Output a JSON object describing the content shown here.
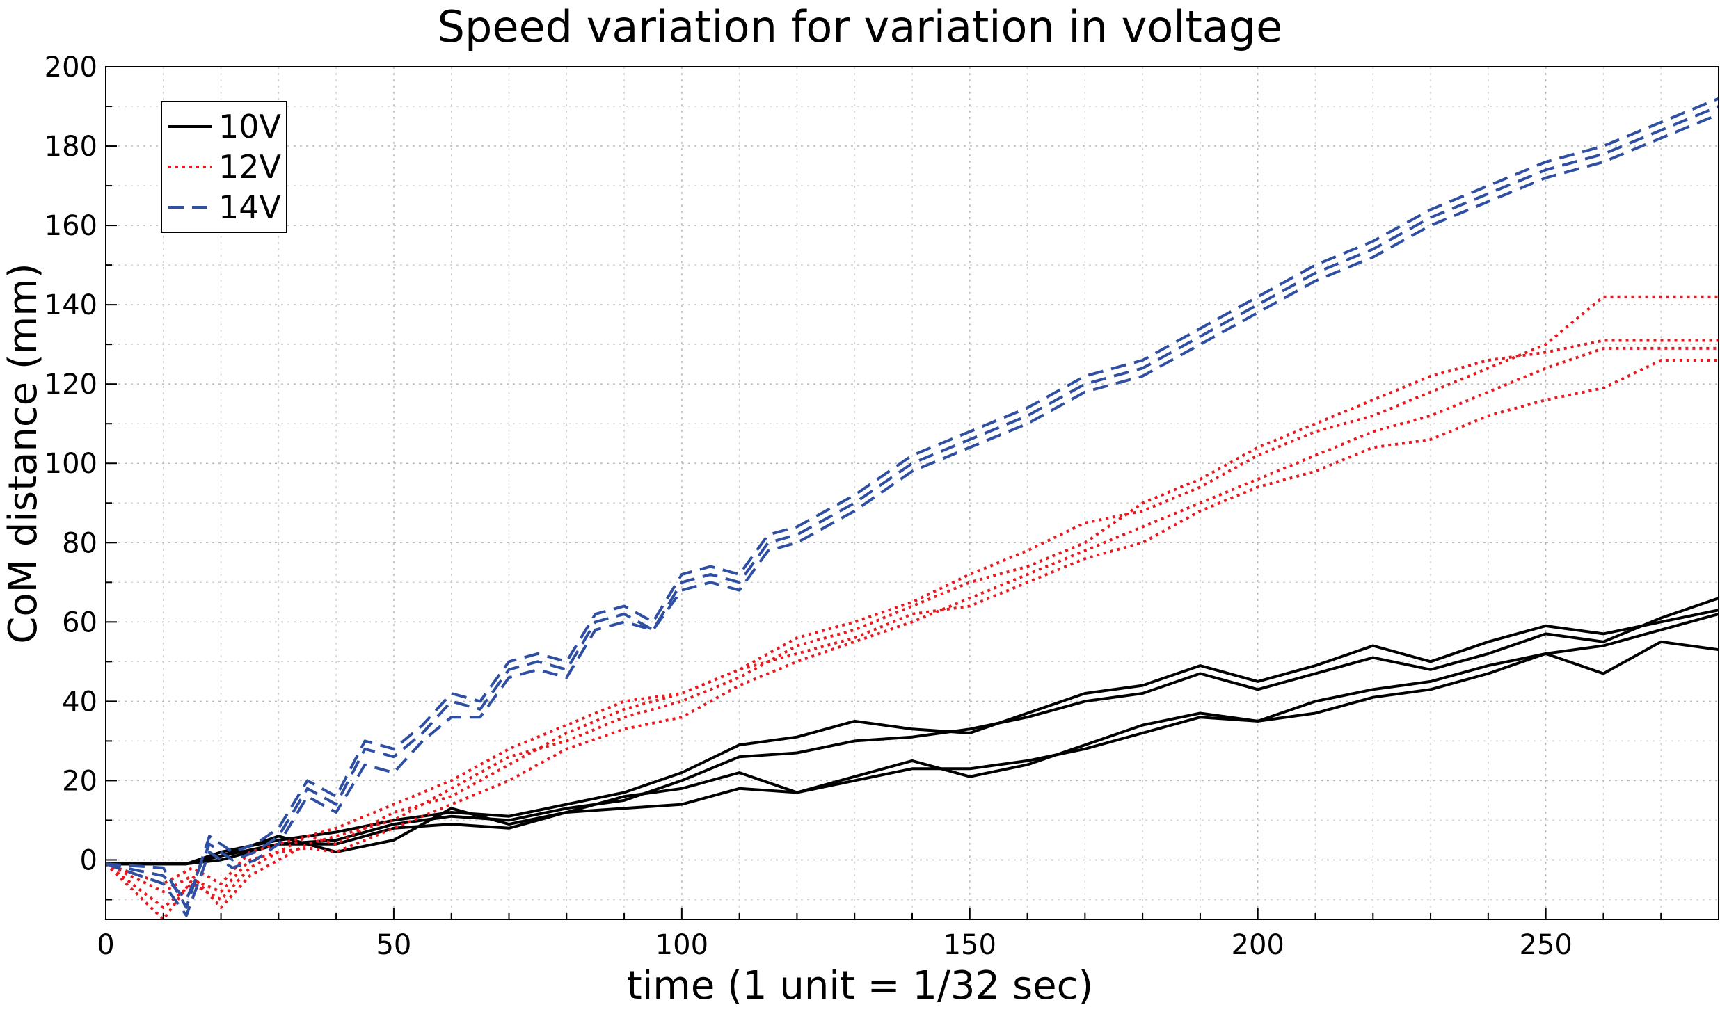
{
  "chart_data": {
    "type": "line",
    "title": "Speed variation for variation in voltage",
    "xlabel": "time (1 unit = 1/32 sec)",
    "ylabel": "CoM distance (mm)",
    "xlim": [
      0,
      280
    ],
    "ylim": [
      -15,
      200
    ],
    "x_ticks": [
      0,
      50,
      100,
      150,
      200,
      250
    ],
    "y_ticks": [
      0,
      20,
      40,
      60,
      80,
      100,
      120,
      140,
      160,
      180,
      200
    ],
    "grid": "on",
    "legend_position": "top-left",
    "legend": [
      "10V",
      "12V",
      "14V"
    ],
    "series": [
      {
        "name": "10V",
        "color": "#000000",
        "dash": "solid",
        "x": [
          0,
          14,
          20,
          30,
          40,
          50,
          60,
          70,
          80,
          90,
          100,
          110,
          120,
          130,
          140,
          150,
          160,
          170,
          180,
          190,
          200,
          210,
          220,
          230,
          240,
          250,
          260,
          270,
          280
        ],
        "y": [
          -1,
          -1,
          2,
          5,
          7,
          10,
          12,
          11,
          14,
          17,
          22,
          29,
          31,
          35,
          33,
          32,
          37,
          42,
          44,
          49,
          45,
          49,
          54,
          50,
          55,
          59,
          57,
          60,
          63
        ]
      },
      {
        "name": "10V",
        "color": "#000000",
        "dash": "solid",
        "x": [
          0,
          14,
          20,
          30,
          40,
          50,
          60,
          70,
          80,
          90,
          100,
          110,
          120,
          130,
          140,
          150,
          160,
          170,
          180,
          190,
          200,
          210,
          220,
          230,
          240,
          250,
          260,
          270,
          280
        ],
        "y": [
          -1,
          -1,
          1,
          4,
          5,
          9,
          11,
          10,
          13,
          15,
          20,
          26,
          27,
          30,
          31,
          33,
          36,
          40,
          42,
          47,
          43,
          47,
          51,
          48,
          52,
          57,
          55,
          61,
          66
        ]
      },
      {
        "name": "10V",
        "color": "#000000",
        "dash": "solid",
        "x": [
          0,
          14,
          20,
          30,
          40,
          50,
          60,
          70,
          80,
          90,
          100,
          110,
          120,
          130,
          140,
          150,
          160,
          170,
          180,
          190,
          200,
          210,
          220,
          230,
          240,
          250,
          260,
          270,
          280
        ],
        "y": [
          -1,
          -1,
          0,
          4,
          4,
          8,
          9,
          8,
          12,
          13,
          14,
          18,
          17,
          20,
          23,
          23,
          25,
          28,
          32,
          36,
          35,
          40,
          43,
          45,
          49,
          52,
          54,
          58,
          62
        ]
      },
      {
        "name": "10V",
        "color": "#000000",
        "dash": "solid",
        "x": [
          0,
          14,
          20,
          30,
          40,
          50,
          60,
          70,
          80,
          90,
          100,
          110,
          120,
          130,
          140,
          150,
          160,
          170,
          180,
          190,
          200,
          210,
          220,
          230,
          240,
          250,
          260,
          270,
          280
        ],
        "y": [
          -1,
          -1,
          1,
          6,
          2,
          5,
          13,
          9,
          12,
          16,
          18,
          22,
          17,
          21,
          25,
          21,
          24,
          29,
          34,
          37,
          35,
          37,
          41,
          43,
          47,
          52,
          47,
          55,
          53
        ]
      },
      {
        "name": "12V",
        "color": "#e8191f",
        "dash": "dotted",
        "x": [
          0,
          10,
          15,
          20,
          25,
          30,
          35,
          40,
          50,
          60,
          70,
          80,
          90,
          100,
          110,
          120,
          130,
          140,
          150,
          160,
          170,
          180,
          190,
          200,
          210,
          220,
          230,
          240,
          250,
          260,
          270,
          280
        ],
        "y": [
          -1,
          -12,
          -6,
          -10,
          -2,
          2,
          6,
          4,
          12,
          16,
          24,
          32,
          38,
          42,
          48,
          56,
          60,
          65,
          72,
          78,
          85,
          88,
          94,
          102,
          108,
          112,
          118,
          124,
          130,
          142,
          142,
          142
        ]
      },
      {
        "name": "12V",
        "color": "#e8191f",
        "dash": "dotted",
        "x": [
          0,
          10,
          15,
          20,
          25,
          30,
          35,
          40,
          50,
          60,
          70,
          80,
          90,
          100,
          110,
          120,
          130,
          140,
          150,
          160,
          170,
          180,
          190,
          200,
          210,
          220,
          230,
          240,
          250,
          260,
          270,
          280
        ],
        "y": [
          -1,
          -8,
          -4,
          -12,
          -4,
          0,
          4,
          6,
          10,
          18,
          26,
          30,
          36,
          40,
          46,
          54,
          58,
          64,
          70,
          74,
          80,
          90,
          96,
          104,
          110,
          116,
          122,
          126,
          128,
          131,
          131,
          131
        ]
      },
      {
        "name": "12V",
        "color": "#e8191f",
        "dash": "dotted",
        "x": [
          0,
          10,
          15,
          20,
          25,
          30,
          35,
          40,
          50,
          60,
          70,
          80,
          90,
          100,
          110,
          120,
          130,
          140,
          150,
          160,
          170,
          180,
          190,
          200,
          210,
          220,
          230,
          240,
          250,
          260,
          270,
          280
        ],
        "y": [
          -1,
          -15,
          -5,
          -8,
          0,
          2,
          3,
          2,
          8,
          14,
          20,
          28,
          33,
          36,
          44,
          50,
          55,
          60,
          66,
          72,
          78,
          84,
          90,
          96,
          102,
          108,
          112,
          118,
          124,
          129,
          129,
          129
        ]
      },
      {
        "name": "12V",
        "color": "#e8191f",
        "dash": "dotted",
        "x": [
          0,
          10,
          15,
          20,
          25,
          30,
          35,
          40,
          50,
          60,
          70,
          80,
          90,
          100,
          110,
          120,
          130,
          140,
          150,
          160,
          170,
          180,
          190,
          200,
          210,
          220,
          230,
          240,
          250,
          260,
          270,
          280
        ],
        "y": [
          -1,
          -6,
          -2,
          -6,
          2,
          4,
          6,
          8,
          14,
          20,
          28,
          34,
          40,
          42,
          48,
          52,
          56,
          62,
          64,
          70,
          76,
          80,
          88,
          94,
          98,
          104,
          106,
          112,
          116,
          119,
          126,
          126
        ]
      },
      {
        "name": "14V",
        "color": "#2f4fa2",
        "dash": "dashed",
        "x": [
          0,
          10,
          14,
          18,
          22,
          26,
          30,
          35,
          40,
          45,
          50,
          55,
          60,
          65,
          70,
          75,
          80,
          85,
          90,
          95,
          100,
          105,
          110,
          115,
          120,
          130,
          140,
          150,
          160,
          170,
          180,
          190,
          200,
          210,
          220,
          230,
          240,
          250,
          260,
          270,
          280
        ],
        "y": [
          -1,
          -2,
          -12,
          6,
          2,
          4,
          8,
          20,
          16,
          30,
          28,
          34,
          42,
          40,
          50,
          52,
          50,
          62,
          64,
          60,
          72,
          74,
          72,
          82,
          84,
          92,
          102,
          108,
          114,
          122,
          126,
          134,
          142,
          150,
          156,
          164,
          170,
          176,
          180,
          186,
          192
        ]
      },
      {
        "name": "14V",
        "color": "#2f4fa2",
        "dash": "dashed",
        "x": [
          0,
          10,
          14,
          18,
          22,
          26,
          30,
          35,
          40,
          45,
          50,
          55,
          60,
          65,
          70,
          75,
          80,
          85,
          90,
          95,
          100,
          105,
          110,
          115,
          120,
          130,
          140,
          150,
          160,
          170,
          180,
          190,
          200,
          210,
          220,
          230,
          240,
          250,
          260,
          270,
          280
        ],
        "y": [
          -1,
          -4,
          -10,
          4,
          0,
          2,
          6,
          18,
          14,
          28,
          26,
          32,
          40,
          38,
          48,
          50,
          48,
          60,
          62,
          58,
          70,
          72,
          70,
          80,
          82,
          90,
          100,
          106,
          112,
          120,
          124,
          132,
          140,
          148,
          154,
          162,
          168,
          174,
          178,
          184,
          190
        ]
      },
      {
        "name": "14V",
        "color": "#2f4fa2",
        "dash": "dashed",
        "x": [
          0,
          10,
          14,
          18,
          22,
          26,
          30,
          35,
          40,
          45,
          50,
          55,
          60,
          65,
          70,
          75,
          80,
          85,
          90,
          95,
          100,
          105,
          110,
          115,
          120,
          130,
          140,
          150,
          160,
          170,
          180,
          190,
          200,
          210,
          220,
          230,
          240,
          250,
          260,
          270,
          280
        ],
        "y": [
          -1,
          -6,
          -14,
          2,
          -2,
          0,
          4,
          16,
          12,
          24,
          22,
          30,
          36,
          36,
          46,
          48,
          46,
          58,
          60,
          58,
          68,
          70,
          68,
          78,
          80,
          88,
          98,
          104,
          110,
          118,
          122,
          130,
          138,
          146,
          152,
          160,
          166,
          172,
          176,
          182,
          188
        ]
      }
    ]
  }
}
